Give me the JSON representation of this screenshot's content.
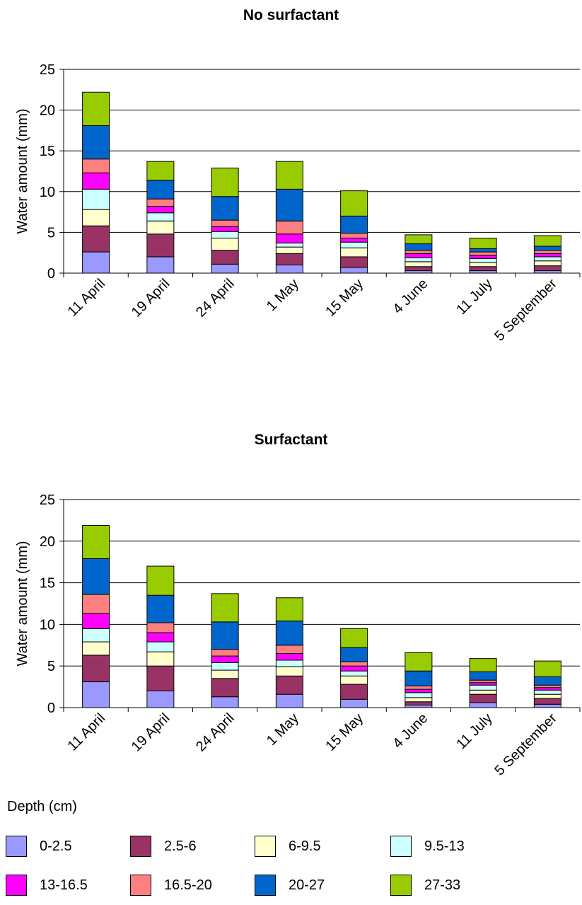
{
  "chart_data": [
    {
      "type": "bar",
      "stacked": true,
      "title": "No surfactant",
      "xlabel": "",
      "ylabel": "Water amount (mm)",
      "ylim": [
        0,
        25
      ],
      "yticks": [
        0,
        5,
        10,
        15,
        20,
        25
      ],
      "categories": [
        "11 April",
        "19 April",
        "24 April",
        "1 May",
        "15 May",
        "4 June",
        "11 July",
        "5 September"
      ],
      "series": [
        {
          "name": "0-2.5",
          "values": [
            2.6,
            2.0,
            1.1,
            1.0,
            0.7,
            0.3,
            0.3,
            0.3
          ]
        },
        {
          "name": "2.5-6",
          "values": [
            3.2,
            2.8,
            1.7,
            1.4,
            1.3,
            0.5,
            0.5,
            0.6
          ]
        },
        {
          "name": "6-9.5",
          "values": [
            2.0,
            1.6,
            1.5,
            0.8,
            1.1,
            0.6,
            0.5,
            0.6
          ]
        },
        {
          "name": "9.5-13",
          "values": [
            2.5,
            1.0,
            0.8,
            0.5,
            0.7,
            0.5,
            0.5,
            0.5
          ]
        },
        {
          "name": "13-16.5",
          "values": [
            2.0,
            0.8,
            0.6,
            1.1,
            0.5,
            0.5,
            0.4,
            0.4
          ]
        },
        {
          "name": "16.5-20",
          "values": [
            1.7,
            0.9,
            0.8,
            1.6,
            0.6,
            0.4,
            0.4,
            0.4
          ]
        },
        {
          "name": "20-27",
          "values": [
            4.1,
            2.3,
            2.9,
            3.9,
            2.1,
            0.8,
            0.4,
            0.5
          ]
        },
        {
          "name": "27-33",
          "values": [
            4.1,
            2.3,
            3.5,
            3.4,
            3.1,
            1.1,
            1.3,
            1.3
          ]
        }
      ]
    },
    {
      "type": "bar",
      "stacked": true,
      "title": "Surfactant",
      "xlabel": "",
      "ylabel": "Water amount (mm)",
      "ylim": [
        0,
        25
      ],
      "yticks": [
        0,
        5,
        10,
        15,
        20,
        25
      ],
      "categories": [
        "11 April",
        "19 April",
        "24 April",
        "1 May",
        "15 May",
        "4 June",
        "11 July",
        "5 September"
      ],
      "series": [
        {
          "name": "0-2.5",
          "values": [
            3.1,
            2.0,
            1.3,
            1.6,
            1.0,
            0.3,
            0.6,
            0.4
          ]
        },
        {
          "name": "2.5-6",
          "values": [
            3.2,
            3.0,
            2.2,
            2.2,
            1.8,
            0.4,
            1.0,
            0.7
          ]
        },
        {
          "name": "6-9.5",
          "values": [
            1.6,
            1.7,
            1.0,
            1.1,
            1.0,
            0.5,
            0.5,
            0.5
          ]
        },
        {
          "name": "9.5-13",
          "values": [
            1.6,
            1.2,
            0.9,
            0.8,
            0.6,
            0.6,
            0.6,
            0.5
          ]
        },
        {
          "name": "13-16.5",
          "values": [
            1.8,
            1.1,
            0.8,
            0.8,
            0.6,
            0.4,
            0.3,
            0.3
          ]
        },
        {
          "name": "16.5-20",
          "values": [
            2.3,
            1.2,
            0.8,
            1.0,
            0.5,
            0.4,
            0.3,
            0.3
          ]
        },
        {
          "name": "20-27",
          "values": [
            4.3,
            3.3,
            3.3,
            2.9,
            1.7,
            1.8,
            1.0,
            1.0
          ]
        },
        {
          "name": "27-33",
          "values": [
            4.0,
            3.5,
            3.4,
            2.8,
            2.3,
            2.2,
            1.6,
            1.9
          ]
        }
      ]
    }
  ],
  "legend": {
    "title": "Depth (cm)",
    "items": [
      {
        "label": "0-2.5",
        "color": "#9999ff"
      },
      {
        "label": "2.5-6",
        "color": "#993366"
      },
      {
        "label": "6-9.5",
        "color": "#ffffcc"
      },
      {
        "label": "9.5-13",
        "color": "#ccffff"
      },
      {
        "label": "13-16.5",
        "color": "#ff00ff"
      },
      {
        "label": "16.5-20",
        "color": "#ff8080"
      },
      {
        "label": "20-27",
        "color": "#0066cc"
      },
      {
        "label": "27-33",
        "color": "#99cc00"
      }
    ]
  }
}
